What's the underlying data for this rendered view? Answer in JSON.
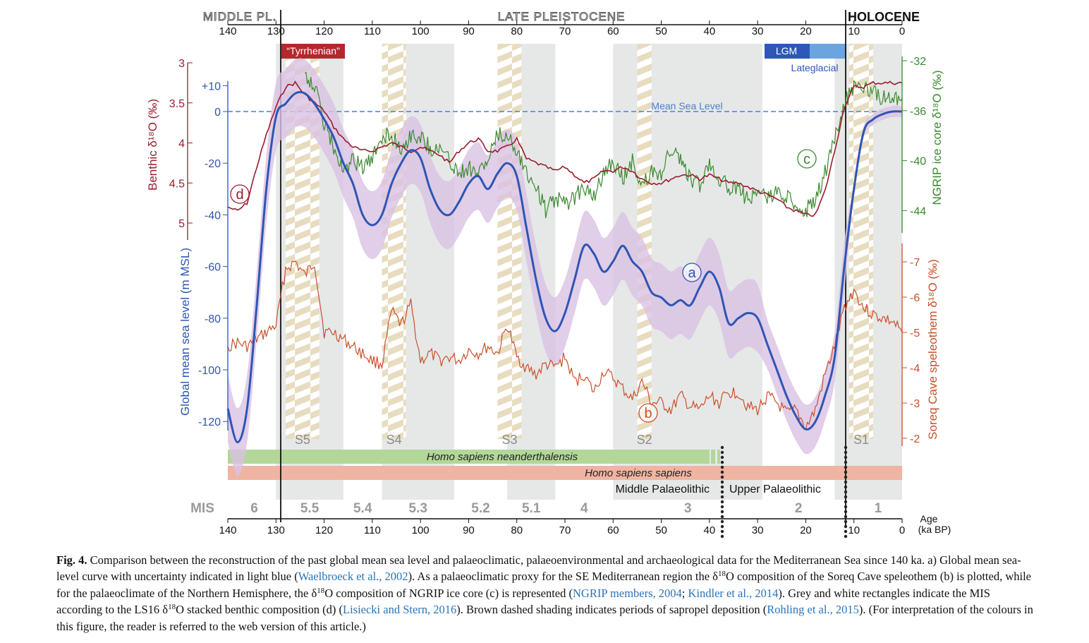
{
  "figure": {
    "periods": {
      "middle": "MIDDLE PL.",
      "late": "LATE PLEISTOCENE",
      "holocene": "HOLOCENE"
    },
    "age_axis_label_1": "Age",
    "age_axis_label_2": "(ka BP)",
    "tyrrhenian_label": "“Tyrrhenian”",
    "lgm_label": "LGM",
    "lateglacial_label": "Lateglacial",
    "mean_sea_level_label": "Mean Sea Level",
    "sapropel_labels": [
      "S5",
      "S4",
      "S3",
      "S2",
      "S1"
    ],
    "mis_label": "MIS",
    "mis_stage_labels": [
      "6",
      "5.5",
      "5.4",
      "5.3",
      "5.2",
      "5.1",
      "4",
      "3",
      "2",
      "1"
    ],
    "neanderthal_label": "Homo sapiens neanderthalensis",
    "sapiens_label": "Homo sapiens sapiens",
    "middle_palaeolithic_label": "Middle Palaeolithic",
    "upper_palaeolithic_label": "Upper Palaeolithic",
    "series_markers": [
      "a",
      "b",
      "c",
      "d"
    ],
    "y_labels": {
      "benthic": "Benthic δ¹⁸O (‰)",
      "sea_level": "Global mean sea level (m MSL)",
      "ngrip": "NGRIP ice core δ¹⁸O (‰)",
      "soreq": "Soreq Cave speleothem δ¹⁸O (‰)"
    },
    "colors": {
      "sea_level": "#2e55b4",
      "uncertainty": "#d9c2e3",
      "benthic": "#9b1c2c",
      "ngrip": "#3a8a2e",
      "soreq": "#c9502a",
      "mis_grey": "#e6e8e8",
      "sapropel": "#e8dcc0"
    }
  },
  "chart_data": {
    "type": "line",
    "x_axis": {
      "label": "Age (ka BP)",
      "ticks": [
        140,
        130,
        120,
        110,
        100,
        90,
        80,
        70,
        60,
        50,
        40,
        30,
        20,
        10,
        0
      ],
      "reversed": true,
      "range": [
        140,
        0
      ]
    },
    "y_axes": {
      "benthic_d18O": {
        "ticks": [
          "3",
          "3.5",
          "4",
          "4.5",
          "5"
        ],
        "range": [
          3,
          5
        ],
        "reversed": true
      },
      "sea_level_m": {
        "ticks": [
          "+10",
          "0",
          "-20",
          "-40",
          "-60",
          "-80",
          "-100",
          "-120"
        ],
        "range": [
          -130,
          12
        ]
      },
      "ngrip_d18O": {
        "ticks": [
          "-32",
          "-36",
          "-40",
          "-44"
        ],
        "range": [
          -45,
          -32
        ]
      },
      "soreq_d18O": {
        "ticks": [
          "-7",
          "-6",
          "-5",
          "-4",
          "-3",
          "-2"
        ],
        "range": [
          -7,
          -2
        ]
      }
    },
    "mis_boundaries_ka": [
      130,
      116,
      108,
      93,
      82,
      72,
      60,
      29,
      14
    ],
    "sapropels_ka": [
      [
        128,
        121
      ],
      [
        108,
        103
      ],
      [
        84,
        79
      ],
      [
        55,
        52
      ],
      [
        11,
        6
      ]
    ],
    "series": [
      {
        "id": "a",
        "name": "Global mean sea level",
        "x": [
          140,
          138,
          136,
          134,
          132,
          130,
          128,
          126,
          124,
          122,
          120,
          118,
          116,
          114,
          112,
          110,
          108,
          106,
          104,
          102,
          100,
          98,
          96,
          94,
          92,
          90,
          88,
          86,
          84,
          82,
          80,
          78,
          76,
          74,
          72,
          70,
          68,
          66,
          64,
          62,
          60,
          58,
          56,
          54,
          52,
          50,
          48,
          46,
          44,
          42,
          40,
          38,
          36,
          34,
          32,
          30,
          28,
          26,
          24,
          22,
          20,
          18,
          16,
          14,
          12,
          10,
          8,
          6,
          4,
          2,
          0
        ],
        "y": [
          -115,
          -128,
          -115,
          -75,
          -30,
          -2,
          3,
          7,
          7,
          3,
          -3,
          -10,
          -20,
          -28,
          -40,
          -44,
          -40,
          -28,
          -20,
          -15,
          -18,
          -30,
          -38,
          -40,
          -35,
          -28,
          -25,
          -30,
          -24,
          -20,
          -25,
          -45,
          -65,
          -80,
          -85,
          -78,
          -65,
          -52,
          -55,
          -62,
          -58,
          -52,
          -58,
          -62,
          -70,
          -72,
          -75,
          -73,
          -75,
          -68,
          -62,
          -68,
          -82,
          -80,
          -78,
          -80,
          -90,
          -100,
          -110,
          -118,
          -123,
          -120,
          -110,
          -95,
          -60,
          -30,
          -8,
          -3,
          -1,
          0,
          0
        ]
      },
      {
        "id": "b",
        "name": "Soreq Cave speleothem",
        "x": [
          140,
          138,
          136,
          134,
          132,
          130,
          128,
          126,
          124,
          122,
          120,
          118,
          116,
          114,
          112,
          110,
          108,
          106,
          104,
          102,
          100,
          98,
          96,
          94,
          92,
          90,
          88,
          86,
          84,
          82,
          80,
          78,
          76,
          74,
          72,
          70,
          68,
          66,
          64,
          62,
          60,
          58,
          56,
          54,
          52,
          50,
          48,
          46,
          44,
          42,
          40,
          38,
          36,
          34,
          32,
          30,
          28,
          26,
          24,
          22,
          20,
          18,
          16,
          14,
          12,
          10,
          8,
          6,
          4,
          2,
          0
        ],
        "y": [
          -4.6,
          -4.7,
          -4.6,
          -4.8,
          -5.0,
          -5.2,
          -6.8,
          -7.0,
          -6.6,
          -7.0,
          -5.0,
          -5.0,
          -4.8,
          -4.6,
          -4.4,
          -4.2,
          -4.1,
          -5.6,
          -5.2,
          -5.8,
          -4.2,
          -4.4,
          -4.2,
          -4.3,
          -4.2,
          -4.5,
          -4.4,
          -4.6,
          -4.4,
          -5.2,
          -4.3,
          -4.0,
          -3.8,
          -4.1,
          -4.0,
          -4.3,
          -3.6,
          -3.8,
          -3.3,
          -3.9,
          -3.7,
          -3.4,
          -3.1,
          -3.6,
          -3.0,
          -3.0,
          -2.8,
          -3.2,
          -2.9,
          -2.8,
          -3.2,
          -3.0,
          -3.3,
          -3.3,
          -2.9,
          -2.8,
          -3.2,
          -3.0,
          -2.7,
          -2.8,
          -2.3,
          -2.8,
          -3.8,
          -4.6,
          -5.7,
          -6.2,
          -5.7,
          -5.5,
          -5.4,
          -5.3,
          -5.0
        ]
      },
      {
        "id": "c",
        "name": "NGRIP ice core",
        "x": [
          124,
          122,
          120,
          118,
          116,
          114,
          112,
          110,
          108,
          106,
          104,
          102,
          100,
          98,
          96,
          94,
          92,
          90,
          88,
          86,
          84,
          82,
          80,
          78,
          76,
          74,
          72,
          70,
          68,
          66,
          64,
          62,
          60,
          58,
          56,
          54,
          52,
          50,
          48,
          46,
          44,
          42,
          40,
          38,
          36,
          34,
          32,
          30,
          28,
          26,
          24,
          22,
          20,
          18,
          16,
          14,
          12,
          10,
          8,
          6,
          4,
          2,
          0
        ],
        "y": [
          -33,
          -34,
          -37,
          -39,
          -41,
          -40,
          -40.5,
          -40,
          -38,
          -38,
          -39,
          -38,
          -38,
          -39,
          -39,
          -40,
          -41,
          -40.5,
          -41,
          -40,
          -38,
          -38,
          -39,
          -41,
          -42,
          -44,
          -43,
          -43.5,
          -43,
          -42,
          -43,
          -41,
          -40,
          -41.5,
          -40,
          -42,
          -41,
          -41,
          -39,
          -40,
          -41.5,
          -42,
          -40,
          -41.5,
          -42,
          -42.5,
          -43,
          -42.5,
          -43,
          -42.5,
          -43,
          -43.5,
          -44,
          -43,
          -41,
          -38,
          -35.5,
          -34,
          -34,
          -34.5,
          -35,
          -35,
          -35
        ]
      },
      {
        "id": "d",
        "name": "LS16 benthic",
        "x": [
          140,
          138,
          136,
          134,
          132,
          130,
          128,
          126,
          124,
          122,
          120,
          118,
          116,
          114,
          112,
          110,
          108,
          106,
          104,
          102,
          100,
          98,
          96,
          94,
          92,
          90,
          88,
          86,
          84,
          82,
          80,
          78,
          76,
          74,
          72,
          70,
          68,
          66,
          64,
          62,
          60,
          58,
          56,
          54,
          52,
          50,
          48,
          46,
          44,
          42,
          40,
          38,
          36,
          34,
          32,
          30,
          28,
          26,
          24,
          22,
          20,
          18,
          16,
          14,
          12,
          10,
          8,
          6,
          4,
          2,
          0
        ],
        "y": [
          4.8,
          4.85,
          4.75,
          4.3,
          3.9,
          3.55,
          3.3,
          3.25,
          3.4,
          3.5,
          3.6,
          3.8,
          3.95,
          4.05,
          4.1,
          4.1,
          4.05,
          4.0,
          4.05,
          4.1,
          4.05,
          4.1,
          4.15,
          4.25,
          4.1,
          4.0,
          3.95,
          4.1,
          4.1,
          4.05,
          3.95,
          4.2,
          4.25,
          4.3,
          4.35,
          4.3,
          4.4,
          4.5,
          4.45,
          4.35,
          4.35,
          4.3,
          4.35,
          4.45,
          4.5,
          4.5,
          4.45,
          4.4,
          4.4,
          4.45,
          4.4,
          4.45,
          4.5,
          4.5,
          4.55,
          4.6,
          4.65,
          4.7,
          4.8,
          4.85,
          4.9,
          4.9,
          4.6,
          4.1,
          3.55,
          3.3,
          3.3,
          3.25,
          3.25,
          3.25,
          3.25
        ]
      }
    ]
  },
  "caption": {
    "label": "Fig. 4.",
    "p1": "Comparison between the reconstruction of the past global mean sea level and palaeoclimatic, palaeoenvironmental and archaeological data for the Mediterranean Sea since 140 ka. a) Global mean sea-level curve with uncertainty indicated in light blue (",
    "ref1": "Waelbroeck et al., 2002",
    "p2": "). As a palaeoclimatic proxy for the SE Mediterranean region the δ",
    "sup1": "18",
    "p3": "O composition of the Soreq Cave speleothem (b) is plotted, while for the palaeoclimate of the Northern Hemisphere, the δ",
    "sup2": "18",
    "p4": "O composition of NGRIP ice core (c) is represented (",
    "ref2": "NGRIP members, 2004",
    "p5": "; ",
    "ref3": "Kindler et al., 2014",
    "p6": "). Grey and white rectangles indicate the MIS according to the LS16 δ",
    "sup3": "18",
    "p7": "O stacked benthic composition (d) (",
    "ref4": "Lisiecki and Stern, 2016",
    "p8": "). Brown dashed shading indicates periods of sapropel deposition (",
    "ref5": "Rohling et al., 2015",
    "p9": "). (For interpretation of the colours in this figure, the reader is referred to the web version of this article.)"
  }
}
